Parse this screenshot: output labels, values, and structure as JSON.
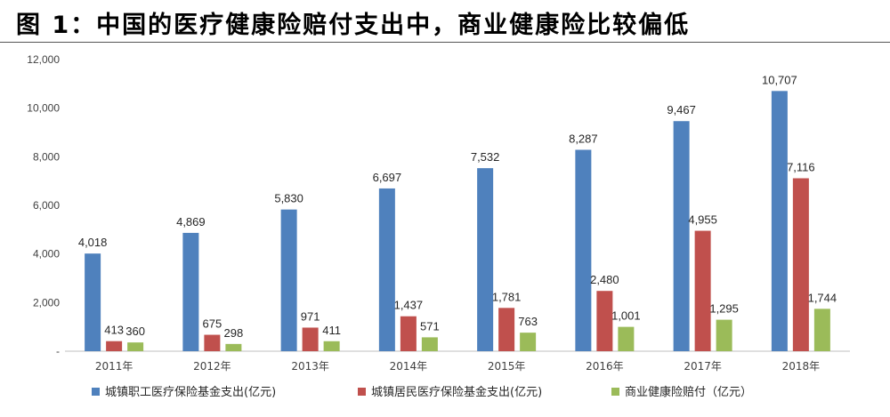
{
  "title": "图 1：中国的医疗健康险赔付支出中，商业健康险比较偏低",
  "chart_data": {
    "type": "bar",
    "title": "图 1：中国的医疗健康险赔付支出中，商业健康险比较偏低",
    "categories": [
      "2011年",
      "2012年",
      "2013年",
      "2014年",
      "2015年",
      "2016年",
      "2017年",
      "2018年"
    ],
    "series": [
      {
        "name": "城镇职工医疗保险基金支出(亿元)",
        "color": "#4f81bd",
        "values": [
          4018,
          4869,
          5830,
          6697,
          7532,
          8287,
          9467,
          10707
        ]
      },
      {
        "name": "城镇居民医疗保险基金支出(亿元)",
        "color": "#c0504d",
        "values": [
          413,
          675,
          971,
          1437,
          1781,
          2480,
          4955,
          7116
        ]
      },
      {
        "name": "商业健康险赔付（亿元）",
        "color": "#9bbb59",
        "values": [
          360,
          298,
          411,
          571,
          763,
          1001,
          1295,
          1744
        ]
      }
    ],
    "ylim": [
      0,
      12000
    ],
    "yticks": [
      0,
      2000,
      4000,
      6000,
      8000,
      10000,
      12000
    ],
    "ytick_labels": [
      "-",
      "2,000",
      "4,000",
      "6,000",
      "8,000",
      "10,000",
      "12,000"
    ],
    "xlabel": "",
    "ylabel": "",
    "grid": false,
    "legend": "bottom"
  }
}
